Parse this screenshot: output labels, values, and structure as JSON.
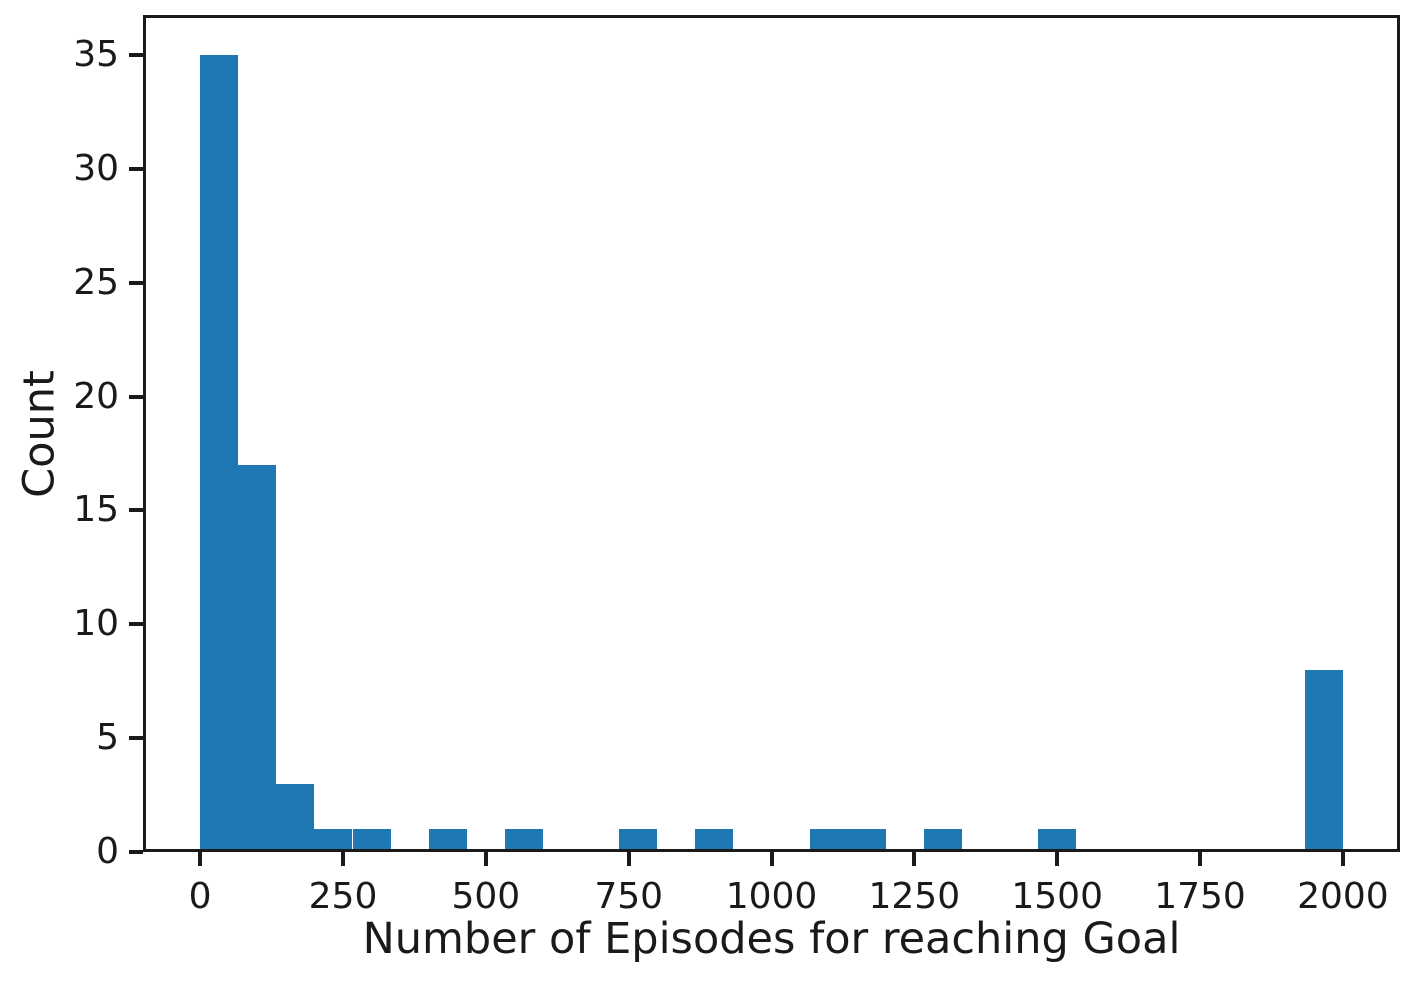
{
  "figure": {
    "background_color": "#ffffff",
    "text_color": "#1a1a1a"
  },
  "chart_data": {
    "type": "bar",
    "subtype": "histogram",
    "title": "",
    "xlabel": "Number of Episodes for reaching Goal",
    "ylabel": "Count",
    "bar_color": "#1f77b4",
    "axis_color": "#1a1a1a",
    "grid": false,
    "legend": "none",
    "bins": {
      "start": 0,
      "end": 2000,
      "num_bins": 30,
      "bin_width": 66.67
    },
    "values": [
      35,
      17,
      3,
      1,
      1,
      0,
      1,
      0,
      1,
      0,
      0,
      1,
      0,
      1,
      0,
      0,
      1,
      1,
      0,
      1,
      0,
      0,
      1,
      0,
      0,
      0,
      0,
      0,
      0,
      8
    ],
    "x_ticks": [
      0,
      250,
      500,
      750,
      1000,
      1250,
      1500,
      1750,
      2000
    ],
    "y_ticks": [
      0,
      5,
      10,
      15,
      20,
      25,
      30,
      35
    ],
    "xlim": [
      -100,
      2100
    ],
    "ylim": [
      0,
      36.75
    ]
  }
}
